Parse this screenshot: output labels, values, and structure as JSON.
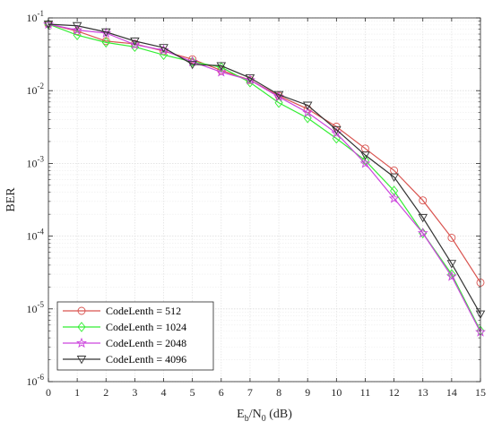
{
  "chart_data": {
    "type": "line",
    "xlabel": {
      "main": "E",
      "sub1": "b",
      "mid": "/N",
      "sub2": "0",
      "tail": " (dB)"
    },
    "ylabel": "BER",
    "x_ticks": [
      "0",
      "1",
      "2",
      "3",
      "4",
      "5",
      "6",
      "7",
      "8",
      "9",
      "10",
      "11",
      "12",
      "13",
      "14",
      "15"
    ],
    "y_ticks": [
      {
        "base": "10",
        "exp": "-6",
        "value": 1e-06
      },
      {
        "base": "10",
        "exp": "-5",
        "value": 1e-05
      },
      {
        "base": "10",
        "exp": "-4",
        "value": 0.0001
      },
      {
        "base": "10",
        "exp": "-3",
        "value": 0.001
      },
      {
        "base": "10",
        "exp": "-2",
        "value": 0.01
      },
      {
        "base": "10",
        "exp": "-1",
        "value": 0.1
      }
    ],
    "xlim": [
      0,
      15
    ],
    "ylim": [
      1e-06,
      0.1
    ],
    "yscale": "log",
    "grid": true,
    "minor_grid": true,
    "legend_position": "bottom-left",
    "x": [
      0,
      1,
      2,
      3,
      4,
      5,
      6,
      7,
      8,
      9,
      10,
      11,
      12,
      13,
      14,
      15
    ],
    "series": [
      {
        "name": "CodeLenth = 512",
        "color": "#d9534f",
        "marker": "circle",
        "values": [
          0.082,
          0.066,
          0.048,
          0.044,
          0.035,
          0.027,
          0.019,
          0.014,
          0.0085,
          0.0056,
          0.0032,
          0.0016,
          0.0008,
          0.00031,
          9.5e-05,
          2.3e-05
        ]
      },
      {
        "name": "CodeLenth = 1024",
        "color": "#33ee33",
        "marker": "diamond",
        "values": [
          0.082,
          0.058,
          0.046,
          0.04,
          0.031,
          0.025,
          0.021,
          0.013,
          0.0068,
          0.0042,
          0.0022,
          0.0011,
          0.00042,
          0.00011,
          3e-05,
          5e-06
        ]
      },
      {
        "name": "CodeLenth = 2048",
        "color": "#cc44dd",
        "marker": "star",
        "values": [
          0.082,
          0.068,
          0.062,
          0.043,
          0.036,
          0.025,
          0.018,
          0.014,
          0.0082,
          0.005,
          0.0026,
          0.001,
          0.00033,
          0.00011,
          2.8e-05,
          4.8e-06
        ]
      },
      {
        "name": "CodeLenth = 4096",
        "color": "#333333",
        "marker": "triangle-down",
        "values": [
          0.082,
          0.078,
          0.064,
          0.048,
          0.039,
          0.023,
          0.022,
          0.015,
          0.0088,
          0.0063,
          0.0029,
          0.0013,
          0.00065,
          0.00018,
          4.2e-05,
          8.5e-06
        ]
      }
    ]
  }
}
